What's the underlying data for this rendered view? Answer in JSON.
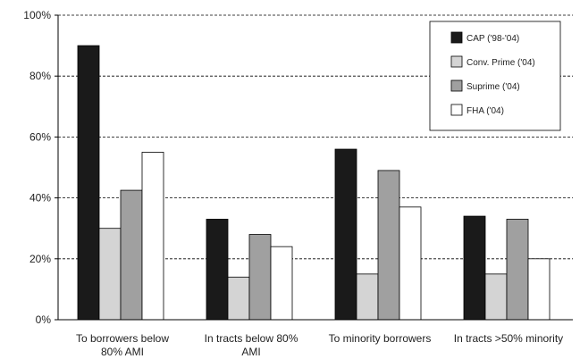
{
  "chart_data": {
    "type": "bar",
    "title": "",
    "xlabel": "",
    "ylabel": "",
    "ylim": [
      0,
      100
    ],
    "yticks": [
      0,
      20,
      40,
      60,
      80,
      100
    ],
    "ytick_suffix": "%",
    "grid": "horizontal-dashed",
    "legend_position": "top-right",
    "categories": [
      [
        "To borrowers below",
        "80% AMI"
      ],
      [
        "In tracts below 80%",
        "AMI"
      ],
      [
        "To minority borrowers"
      ],
      [
        "In tracts >50% minority"
      ]
    ],
    "series": [
      {
        "name": "CAP ('98-'04)",
        "color": "#1a1a1a",
        "values": [
          90,
          33,
          56,
          34
        ]
      },
      {
        "name": "Conv. Prime ('04)",
        "color": "#d4d4d4",
        "values": [
          30,
          14,
          15,
          15
        ]
      },
      {
        "name": "Suprime ('04)",
        "color": "#a0a0a0",
        "values": [
          42.5,
          28,
          49,
          33
        ]
      },
      {
        "name": "FHA ('04)",
        "color": "#ffffff",
        "values": [
          55,
          24,
          37,
          20
        ]
      }
    ]
  }
}
